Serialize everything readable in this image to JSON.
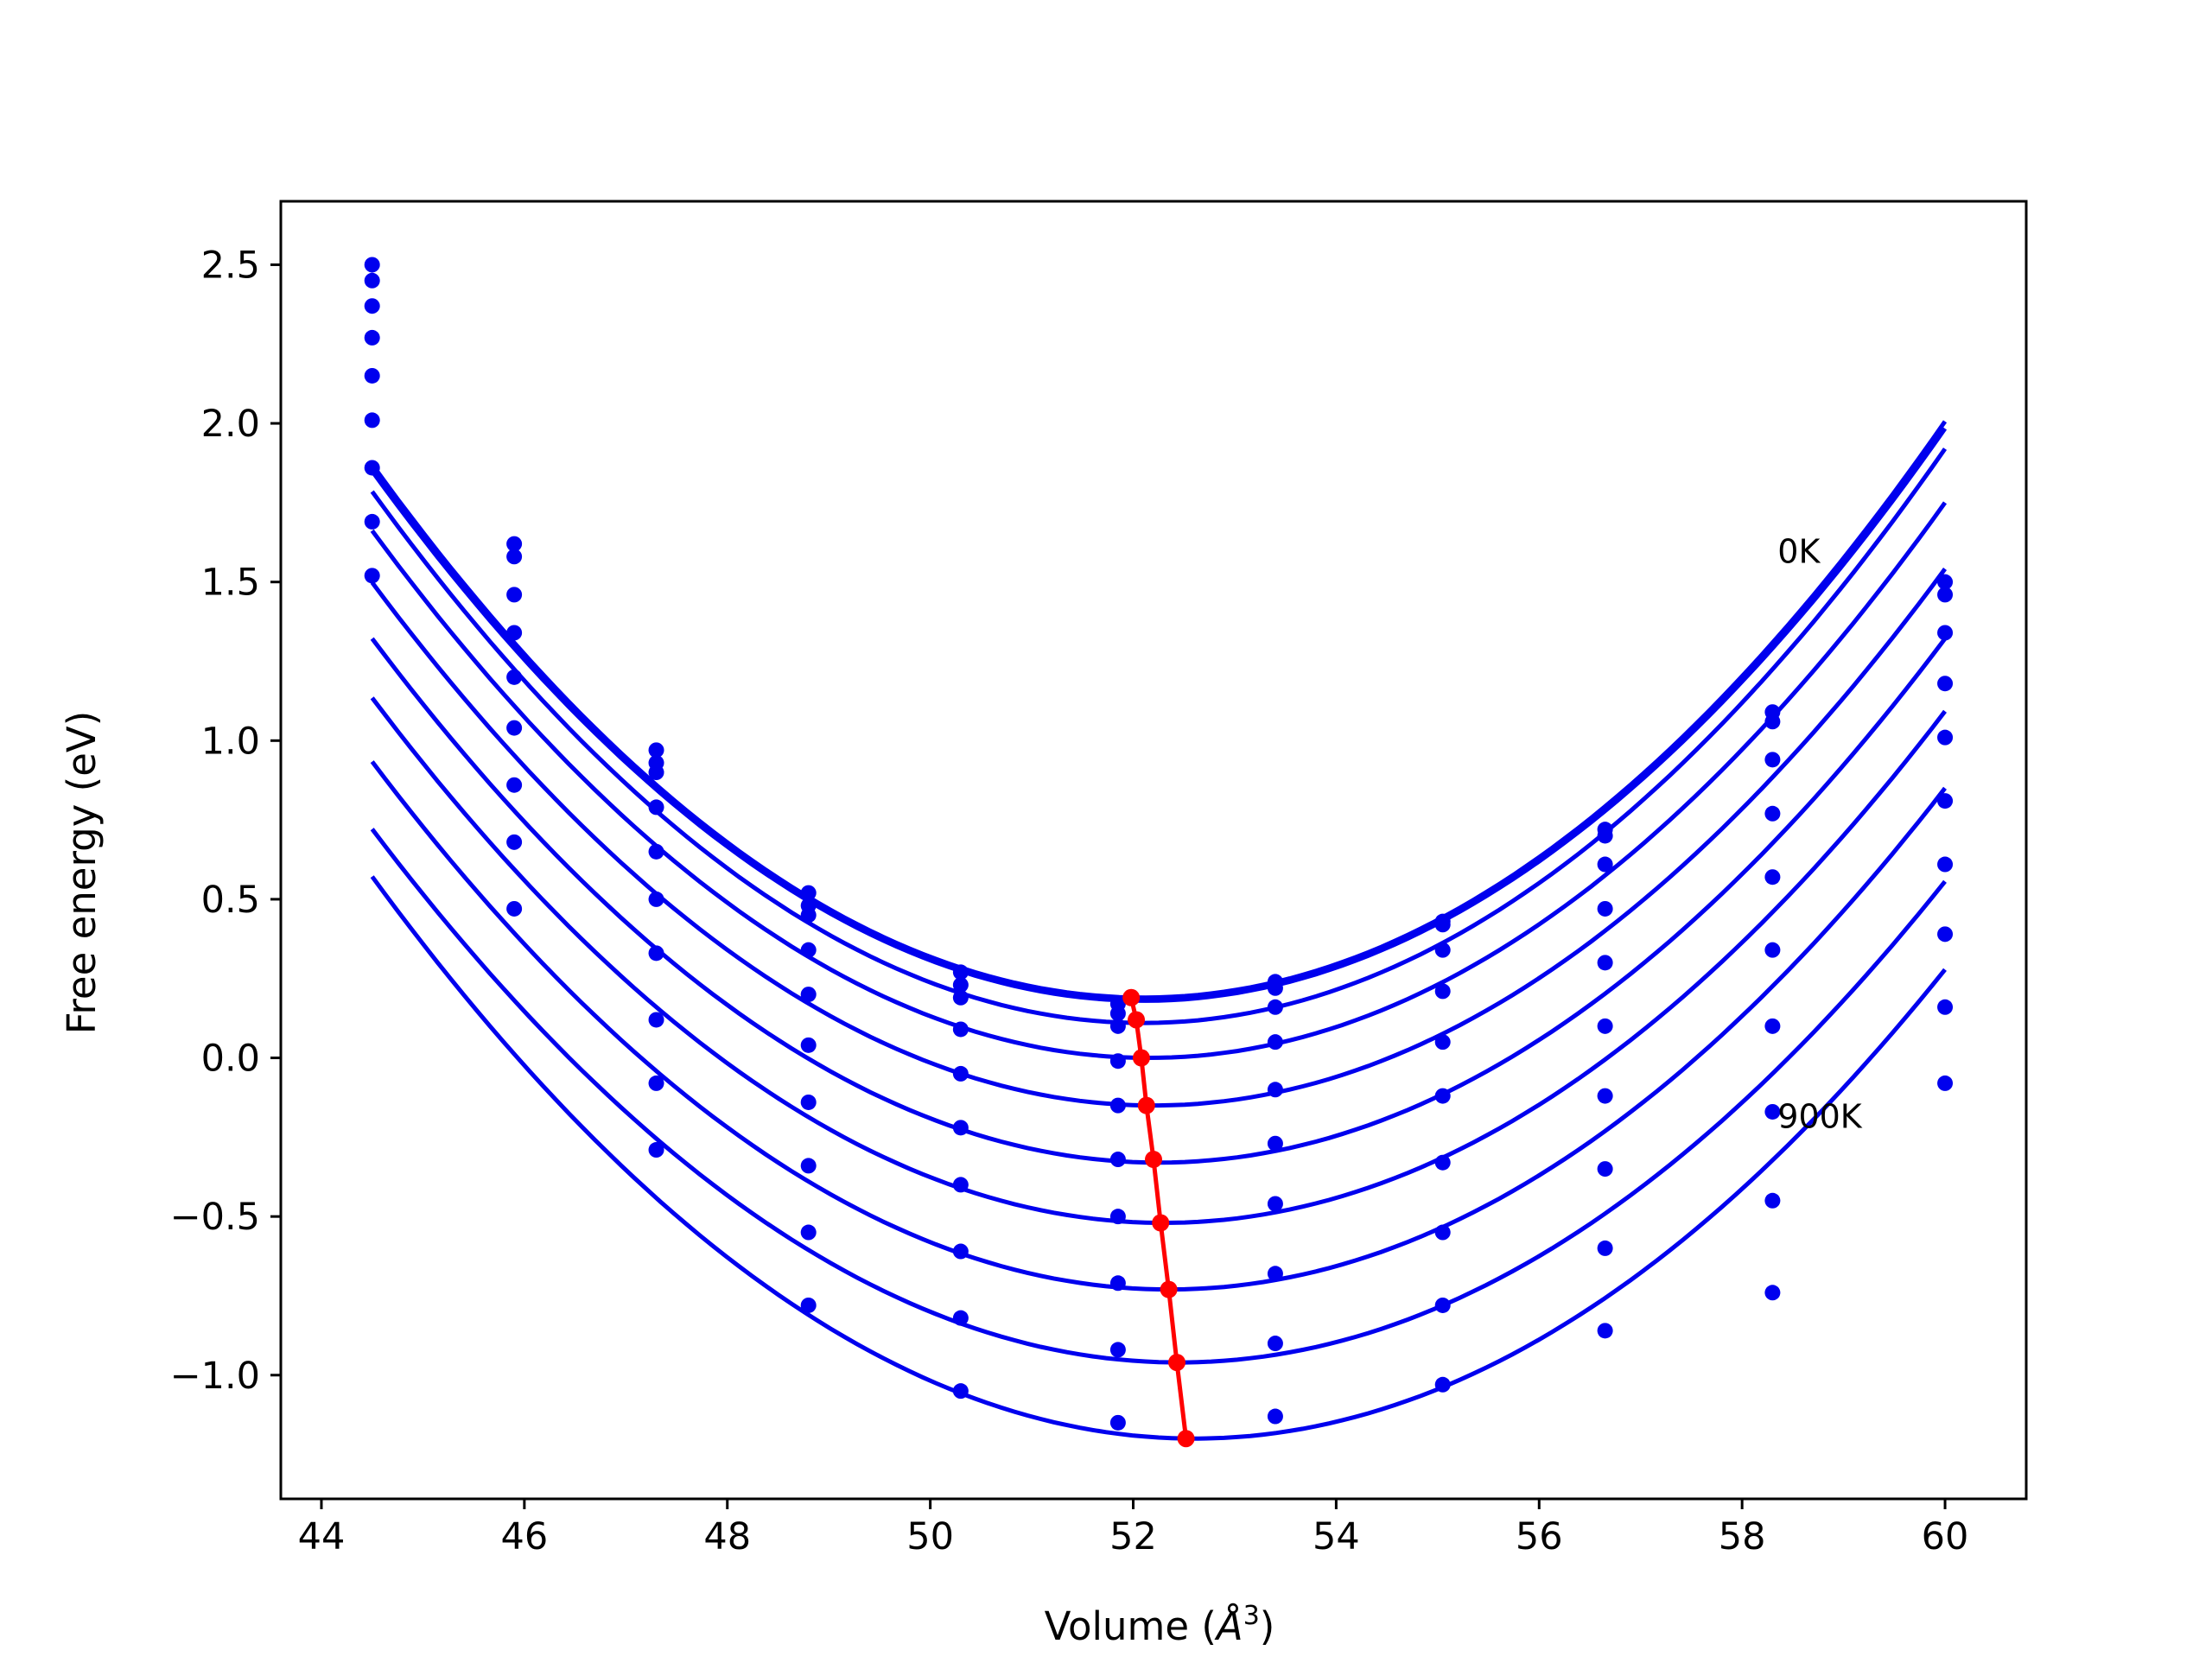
{
  "chart_data": {
    "type": "line",
    "title": "",
    "xlabel": "Volume (",
    "xlabel_unit": "Å",
    "xlabel_exp": "3",
    "xlabel_close": ")",
    "ylabel": "Free energy (eV)",
    "xlim": [
      43.6,
      60.8
    ],
    "ylim": [
      -1.39,
      2.7
    ],
    "grid": false,
    "legend": "none",
    "xticks": [
      44,
      46,
      48,
      50,
      52,
      54,
      56,
      58,
      60
    ],
    "xtick_labels": [
      "44",
      "46",
      "48",
      "50",
      "52",
      "54",
      "56",
      "58",
      "60"
    ],
    "yticks": [
      -1.0,
      -0.5,
      0.0,
      0.5,
      1.0,
      1.5,
      2.0,
      2.5
    ],
    "ytick_labels": [
      "−1.0",
      "−0.5",
      "0.0",
      "0.5",
      "1.0",
      "1.5",
      "2.0",
      "2.5"
    ],
    "annotations": [
      {
        "text": "0K",
        "x": 58.35,
        "y": 1.56
      },
      {
        "text": "900K",
        "x": 58.35,
        "y": -0.22
      }
    ],
    "colors": {
      "curves": "#0000ee",
      "minimum_path": "#ff0000",
      "axes": "#000000"
    },
    "volumes": [
      44.5,
      45.9,
      47.3,
      48.8,
      50.3,
      51.85,
      53.4,
      55.05,
      56.65,
      58.3,
      60.0
    ],
    "fit_x_range": [
      44.5,
      60.0
    ],
    "series": [
      {
        "a": 0.0291,
        "v0": 52.1,
        "e0": 0.19,
        "points": [
          2.5,
          1.62,
          0.97,
          0.52,
          0.27,
          0.17,
          0.24,
          0.43,
          0.72,
          1.09,
          1.5
        ]
      },
      {
        "a": 0.0289,
        "v0": 52.1,
        "e0": 0.18,
        "points": [
          2.45,
          1.58,
          0.93,
          0.48,
          0.23,
          0.14,
          0.22,
          0.42,
          0.7,
          1.06,
          1.46
        ]
      },
      {
        "a": 0.029,
        "v0": 52.1,
        "e0": 0.11,
        "points": [
          2.37,
          1.46,
          0.9,
          0.45,
          0.19,
          0.1,
          0.16,
          0.34,
          0.61,
          0.94,
          1.34
        ]
      },
      {
        "a": 0.0284,
        "v0": 52.15,
        "e0": 0.0,
        "points": [
          2.27,
          1.34,
          0.79,
          0.34,
          0.09,
          -0.01,
          0.05,
          0.21,
          0.47,
          0.77,
          1.18
        ]
      },
      {
        "a": 0.0278,
        "v0": 52.2,
        "e0": -0.15,
        "points": [
          2.15,
          1.2,
          0.65,
          0.2,
          -0.05,
          -0.15,
          -0.1,
          0.05,
          0.3,
          0.57,
          1.01
        ]
      },
      {
        "a": 0.0275,
        "v0": 52.25,
        "e0": -0.33,
        "points": [
          2.01,
          1.04,
          0.5,
          0.04,
          -0.22,
          -0.32,
          -0.27,
          -0.12,
          0.1,
          0.34,
          0.81
        ]
      },
      {
        "a": 0.0272,
        "v0": 52.3,
        "e0": -0.52,
        "points": [
          1.86,
          0.86,
          0.33,
          -0.14,
          -0.4,
          -0.5,
          -0.46,
          -0.33,
          -0.12,
          0.1,
          0.61
        ]
      },
      {
        "a": 0.027,
        "v0": 52.35,
        "e0": -0.73,
        "points": [
          1.69,
          0.68,
          0.12,
          -0.34,
          -0.61,
          -0.71,
          -0.68,
          -0.55,
          -0.35,
          -0.17,
          0.39
        ]
      },
      {
        "a": 0.0266,
        "v0": 52.45,
        "e0": -0.96,
        "points": [
          1.52,
          0.47,
          -0.08,
          -0.55,
          -0.82,
          -0.92,
          -0.9,
          -0.78,
          -0.6,
          -0.45,
          0.16
        ]
      },
      {
        "a": 0.027,
        "v0": 52.6,
        "e0": -1.2,
        "points": [
          null,
          null,
          -0.29,
          -0.78,
          -1.05,
          -1.15,
          -1.13,
          -1.03,
          -0.86,
          -0.74,
          -0.08
        ]
      }
    ],
    "minimum_path": {
      "name": "",
      "x": [
        51.98,
        52.03,
        52.08,
        52.13,
        52.2,
        52.27,
        52.35,
        52.43,
        52.52
      ],
      "y": [
        0.19,
        0.12,
        0.0,
        -0.15,
        -0.32,
        -0.52,
        -0.73,
        -0.96,
        -1.2
      ]
    }
  }
}
